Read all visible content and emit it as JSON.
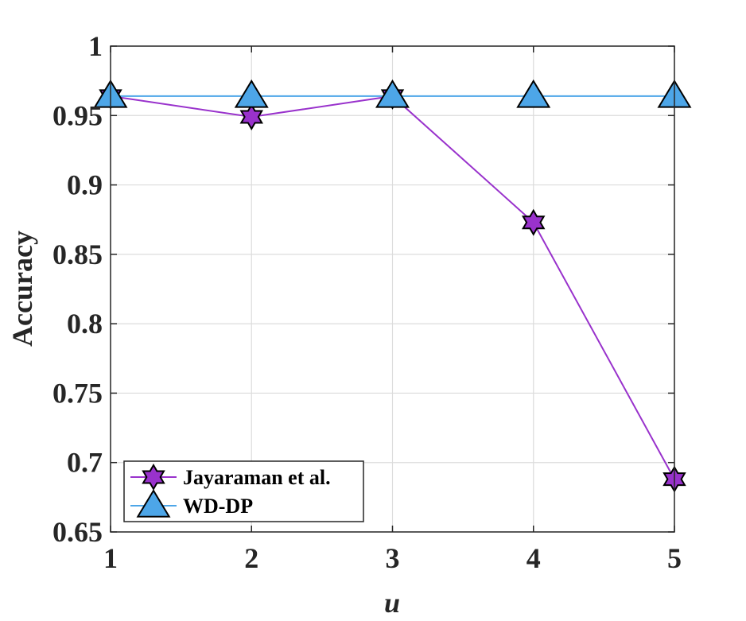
{
  "chart_data": {
    "type": "line",
    "xlabel": "u",
    "ylabel": "Accuracy",
    "x": [
      1,
      2,
      3,
      4,
      5
    ],
    "xlim": [
      1,
      5
    ],
    "ylim": [
      0.65,
      1
    ],
    "xticks": [
      "1",
      "2",
      "3",
      "4",
      "5"
    ],
    "yticks": [
      "0.65",
      "0.7",
      "0.75",
      "0.8",
      "0.85",
      "0.9",
      "0.95",
      "1"
    ],
    "grid": true,
    "legend_position": "bottom-left",
    "series": [
      {
        "name": "Jayaraman et al.",
        "values": [
          0.964,
          0.949,
          0.964,
          0.873,
          0.688
        ],
        "color": "#9932CC",
        "marker": "hexagram"
      },
      {
        "name": "WD-DP",
        "values": [
          0.964,
          0.964,
          0.964,
          0.964,
          0.964
        ],
        "color": "#4DA6E8",
        "marker": "triangle"
      }
    ]
  }
}
